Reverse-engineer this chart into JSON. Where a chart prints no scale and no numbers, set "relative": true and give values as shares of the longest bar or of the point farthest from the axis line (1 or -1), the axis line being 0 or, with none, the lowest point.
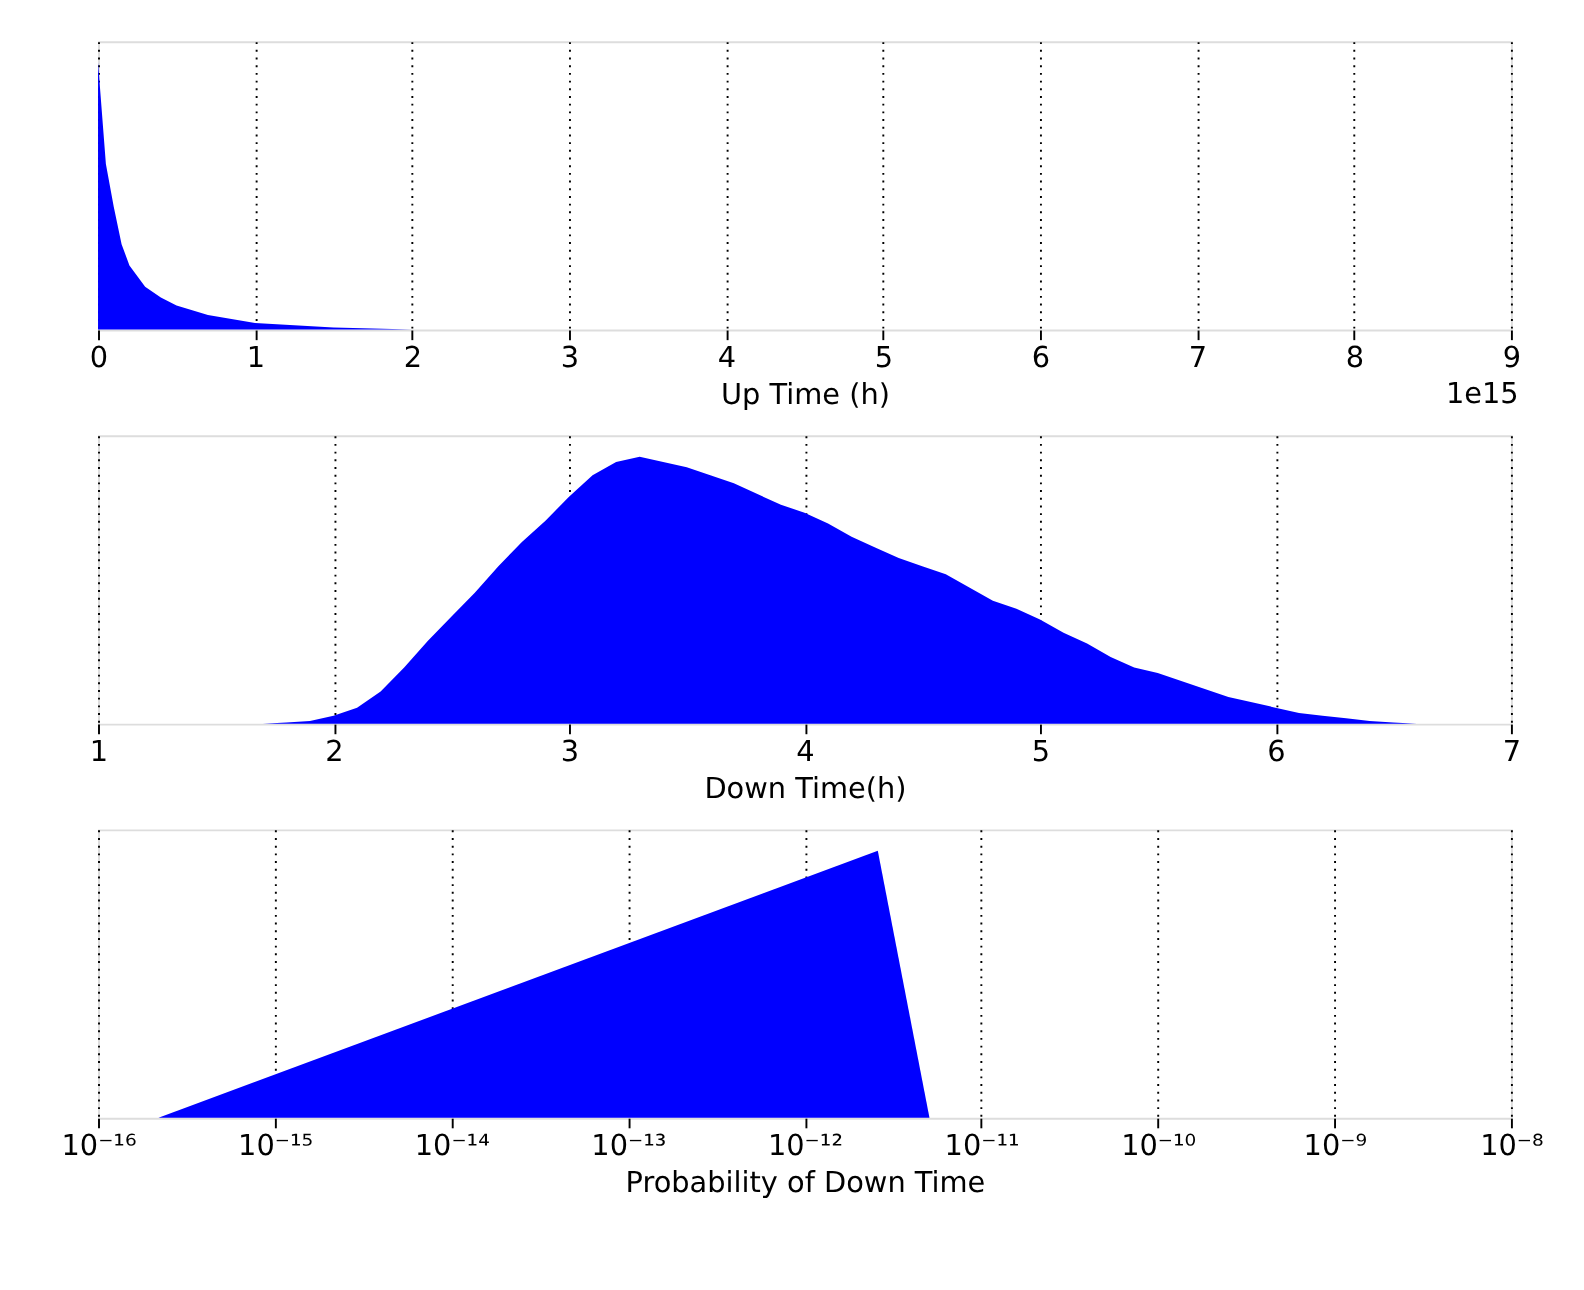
{
  "chart_data": [
    {
      "type": "area",
      "xlabel": "Up Time (h)",
      "relative": true,
      "color": "#0000ff",
      "x": [
        0,
        0.05,
        0.1,
        0.15,
        0.2,
        0.3,
        0.4,
        0.5,
        0.7,
        1.0,
        1.5,
        2.0
      ],
      "values": [
        1,
        0.62,
        0.46,
        0.32,
        0.24,
        0.16,
        0.12,
        0.09,
        0.055,
        0.025,
        0.008,
        0
      ],
      "xlim": [
        0,
        9
      ],
      "xticks": [
        0,
        1,
        2,
        3,
        4,
        5,
        6,
        7,
        8,
        9
      ],
      "grid": "x",
      "tick_labels": "x",
      "annotations": [
        "1e15"
      ]
    },
    {
      "type": "area",
      "xlabel": "Down Time(h)",
      "relative": true,
      "color": "#0000ff",
      "x": [
        1.7,
        1.8,
        1.9,
        2.0,
        2.1,
        2.2,
        2.3,
        2.4,
        2.5,
        2.6,
        2.7,
        2.8,
        2.9,
        3.0,
        3.1,
        3.2,
        3.3,
        3.4,
        3.5,
        3.6,
        3.7,
        3.8,
        3.9,
        4.0,
        4.1,
        4.2,
        4.3,
        4.4,
        4.5,
        4.6,
        4.7,
        4.8,
        4.9,
        5.0,
        5.1,
        5.2,
        5.3,
        5.4,
        5.5,
        5.6,
        5.7,
        5.8,
        5.9,
        6.0,
        6.1,
        6.2,
        6.3,
        6.4,
        6.5,
        6.6
      ],
      "values": [
        0.0,
        0.004,
        0.01,
        0.03,
        0.06,
        0.12,
        0.21,
        0.31,
        0.4,
        0.49,
        0.59,
        0.68,
        0.76,
        0.85,
        0.93,
        0.98,
        1.0,
        0.98,
        0.96,
        0.93,
        0.9,
        0.86,
        0.82,
        0.79,
        0.75,
        0.7,
        0.66,
        0.62,
        0.59,
        0.56,
        0.51,
        0.46,
        0.43,
        0.39,
        0.34,
        0.3,
        0.25,
        0.21,
        0.19,
        0.16,
        0.13,
        0.1,
        0.08,
        0.06,
        0.04,
        0.03,
        0.02,
        0.01,
        0.004,
        0.0
      ],
      "xlim": [
        1,
        7
      ],
      "xticks": [
        1,
        2,
        3,
        4,
        5,
        6,
        7
      ],
      "grid": "x",
      "tick_labels": "x"
    },
    {
      "type": "area",
      "xlabel": "Probability of Down Time",
      "relative": true,
      "log": "x",
      "color": "#0000ff",
      "x": [
        2.2e-16,
        2.6e-12,
        5.1e-12
      ],
      "values": [
        0,
        1,
        0
      ],
      "xlim": [
        1e-16,
        1e-08
      ],
      "xticks": [
        {
          "value": 1e-16,
          "label": "10⁻¹⁶"
        },
        {
          "value": 1e-15,
          "label": "10⁻¹⁵"
        },
        {
          "value": 1e-14,
          "label": "10⁻¹⁴"
        },
        {
          "value": 1e-13,
          "label": "10⁻¹³"
        },
        {
          "value": 1e-12,
          "label": "10⁻¹²"
        },
        {
          "value": 1e-11,
          "label": "10⁻¹¹"
        },
        {
          "value": 1e-10,
          "label": "10⁻¹⁰"
        },
        {
          "value": 1e-09,
          "label": "10⁻⁹"
        },
        {
          "value": 1e-08,
          "label": "10⁻⁸"
        }
      ],
      "grid": "x",
      "tick_labels": "x"
    }
  ]
}
